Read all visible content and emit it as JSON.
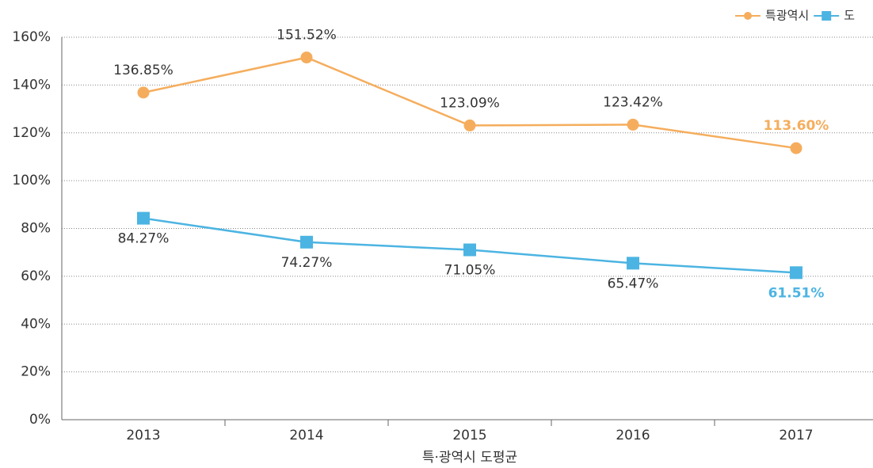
{
  "chart_data": {
    "type": "line",
    "x_label": "특·광역시 도평균",
    "categories": [
      "2013",
      "2014",
      "2015",
      "2016",
      "2017"
    ],
    "series": [
      {
        "name": "특광역시",
        "color": "#f5ad5d",
        "marker": "circle",
        "values": [
          136.85,
          151.52,
          123.09,
          123.42,
          113.6
        ],
        "value_labels": [
          "136.85%",
          "151.52%",
          "123.09%",
          "123.42%",
          "113.60%"
        ]
      },
      {
        "name": "도",
        "color": "#4cb4e2",
        "marker": "square",
        "values": [
          84.27,
          74.27,
          71.05,
          65.47,
          61.51
        ],
        "value_labels": [
          "84.27%",
          "74.27%",
          "71.05%",
          "65.47%",
          "61.51%"
        ]
      }
    ],
    "ylim": [
      0,
      160
    ],
    "yticks": [
      {
        "value": 0,
        "label": "0%"
      },
      {
        "value": 20,
        "label": "20%"
      },
      {
        "value": 40,
        "label": "40%"
      },
      {
        "value": 60,
        "label": "60%"
      },
      {
        "value": 80,
        "label": "80%"
      },
      {
        "value": 100,
        "label": "100%"
      },
      {
        "value": 120,
        "label": "120%"
      },
      {
        "value": 140,
        "label": "140%"
      },
      {
        "value": 160,
        "label": "160%"
      }
    ],
    "grid": true,
    "legend": "top-right"
  }
}
